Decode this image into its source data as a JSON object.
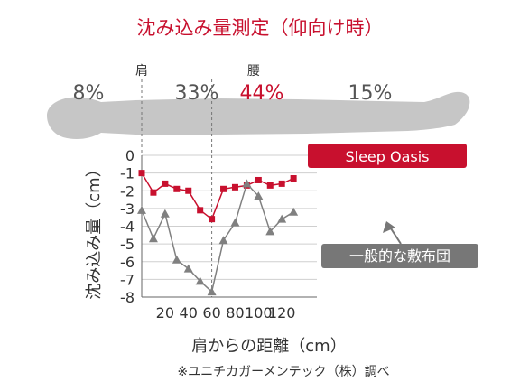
{
  "chart_data": {
    "type": "line",
    "title": "沈み込み量測定（仰向け時）",
    "xlabel": "肩からの距離（cm）",
    "ylabel": "沈み込み量（cm）",
    "note": "※ユニチカガーメンテック（株）調べ",
    "xlim": [
      0,
      150
    ],
    "ylim": [
      -8,
      0
    ],
    "x_ticks": [
      20,
      40,
      60,
      80,
      100,
      120
    ],
    "y_ticks": [
      0,
      -1,
      -2,
      -3,
      -4,
      -5,
      -6,
      -7,
      -8
    ],
    "grid": true,
    "markers": [
      {
        "label": "肩",
        "x": 0
      },
      {
        "label": "腰",
        "x": 60
      }
    ],
    "body_distribution": [
      {
        "label": "8%",
        "highlight": false
      },
      {
        "label": "33%",
        "highlight": false
      },
      {
        "label": "44%",
        "highlight": true
      },
      {
        "label": "15%",
        "highlight": false
      }
    ],
    "series": [
      {
        "name": "Sleep Oasis",
        "color": "#c8102e",
        "marker": "square",
        "x": [
          0,
          10,
          20,
          30,
          40,
          50,
          60,
          70,
          80,
          90,
          100,
          110,
          120,
          130
        ],
        "y": [
          -1.0,
          -2.1,
          -1.6,
          -1.9,
          -2.0,
          -3.1,
          -3.6,
          -1.9,
          -1.8,
          -1.7,
          -1.4,
          -1.7,
          -1.6,
          -1.3
        ]
      },
      {
        "name": "一般的な敷布団",
        "color": "#808080",
        "marker": "triangle",
        "x": [
          0,
          10,
          20,
          30,
          40,
          50,
          60,
          70,
          80,
          90,
          100,
          110,
          120,
          130
        ],
        "y": [
          -3.1,
          -4.7,
          -3.3,
          -5.9,
          -6.4,
          -7.1,
          -7.7,
          -4.8,
          -3.8,
          -1.6,
          -2.3,
          -4.3,
          -3.6,
          -3.2
        ]
      }
    ]
  }
}
